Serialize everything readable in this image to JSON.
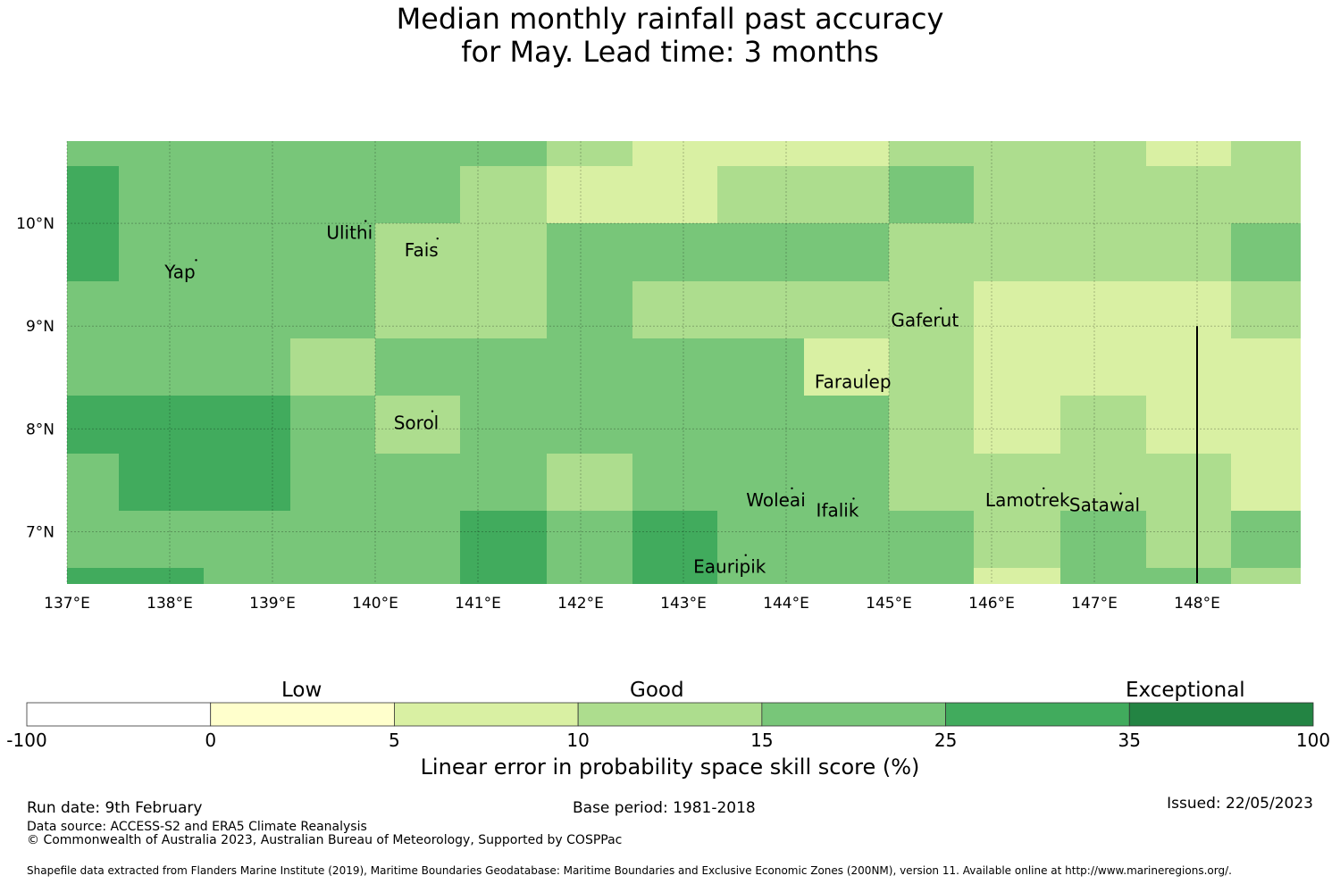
{
  "title": {
    "line1": "Median monthly rainfall past accuracy",
    "line2": "for May. Lead time: 3 months"
  },
  "map": {
    "lon_range": [
      137.0,
      149.0
    ],
    "lat_range": [
      6.5,
      10.8
    ],
    "lon_ticks": [
      {
        "value": 137,
        "label": "137°E"
      },
      {
        "value": 138,
        "label": "138°E"
      },
      {
        "value": 139,
        "label": "139°E"
      },
      {
        "value": 140,
        "label": "140°E"
      },
      {
        "value": 141,
        "label": "141°E"
      },
      {
        "value": 142,
        "label": "142°E"
      },
      {
        "value": 143,
        "label": "143°E"
      },
      {
        "value": 144,
        "label": "144°E"
      },
      {
        "value": 145,
        "label": "145°E"
      },
      {
        "value": 146,
        "label": "146°E"
      },
      {
        "value": 147,
        "label": "147°E"
      },
      {
        "value": 148,
        "label": "148°E"
      }
    ],
    "lat_ticks": [
      {
        "value": 10,
        "label": "10°N"
      },
      {
        "value": 9,
        "label": "9°N"
      },
      {
        "value": 8,
        "label": "8°N"
      },
      {
        "value": 7,
        "label": "7°N"
      }
    ],
    "grid_lon_edges": [
      137.0,
      137.5,
      138.33,
      139.17,
      140.0,
      140.83,
      141.67,
      142.5,
      143.33,
      144.17,
      145.0,
      145.83,
      146.67,
      147.5,
      148.33,
      149.0
    ],
    "grid_lat_edges": [
      10.8,
      10.56,
      10.0,
      9.44,
      8.88,
      8.32,
      7.76,
      7.2,
      6.65,
      6.5
    ],
    "grid_classes": [
      [
        4,
        4,
        4,
        4,
        4,
        4,
        3,
        2,
        2,
        2,
        3,
        3,
        3,
        2,
        3
      ],
      [
        5,
        4,
        4,
        4,
        4,
        3,
        2,
        2,
        3,
        3,
        4,
        3,
        3,
        3,
        3
      ],
      [
        5,
        4,
        4,
        4,
        3,
        3,
        4,
        4,
        4,
        4,
        3,
        3,
        3,
        3,
        4
      ],
      [
        4,
        4,
        4,
        4,
        3,
        3,
        4,
        3,
        3,
        3,
        3,
        2,
        2,
        2,
        3
      ],
      [
        4,
        4,
        4,
        3,
        4,
        4,
        4,
        4,
        4,
        2,
        3,
        2,
        2,
        2,
        2
      ],
      [
        5,
        5,
        5,
        4,
        3,
        4,
        4,
        4,
        4,
        4,
        3,
        2,
        3,
        2,
        2
      ],
      [
        4,
        5,
        5,
        4,
        4,
        4,
        3,
        4,
        4,
        4,
        3,
        3,
        3,
        3,
        2
      ],
      [
        4,
        4,
        4,
        4,
        4,
        5,
        4,
        5,
        4,
        4,
        4,
        3,
        4,
        3,
        4
      ],
      [
        5,
        5,
        4,
        4,
        4,
        5,
        4,
        5,
        4,
        4,
        4,
        2,
        4,
        4,
        3
      ]
    ],
    "boundary_line": {
      "lon": 148.0,
      "lat_from": 6.5,
      "lat_to": 9.0
    },
    "places": [
      {
        "name": "Yap",
        "lon": 138.1,
        "lat": 9.52
      },
      {
        "name": "Ulithi",
        "lon": 139.75,
        "lat": 9.9
      },
      {
        "name": "Fais",
        "lon": 140.45,
        "lat": 9.73
      },
      {
        "name": "Gaferut",
        "lon": 145.35,
        "lat": 9.05
      },
      {
        "name": "Faraulep",
        "lon": 144.65,
        "lat": 8.45
      },
      {
        "name": "Sorol",
        "lon": 140.4,
        "lat": 8.05
      },
      {
        "name": "Woleai",
        "lon": 143.9,
        "lat": 7.3
      },
      {
        "name": "Ifalik",
        "lon": 144.5,
        "lat": 7.2
      },
      {
        "name": "Lamotrek",
        "lon": 146.35,
        "lat": 7.3
      },
      {
        "name": "Satawal",
        "lon": 147.1,
        "lat": 7.25
      },
      {
        "name": "Eauripik",
        "lon": 143.45,
        "lat": 6.65
      }
    ]
  },
  "colorbar": {
    "categories": [
      {
        "label": "Low"
      },
      {
        "label": "Good"
      },
      {
        "label": "Exceptional"
      }
    ],
    "colors": [
      "#ffffff",
      "#ffffcc",
      "#d9f0a3",
      "#addd8e",
      "#78c679",
      "#41ab5d",
      "#238443"
    ],
    "tick_labels": [
      "-100",
      "0",
      "5",
      "10",
      "15",
      "25",
      "35",
      "100"
    ],
    "title": "Linear error in probability space skill score (%)"
  },
  "footer": {
    "run_date": "Run date: 9th February",
    "base_period": "Base period: 1981-2018",
    "issued": "Issued: 22/05/2023",
    "data_source": "Data source: ACCESS-S2 and ERA5 Climate Reanalysis",
    "copyright": "© Commonwealth of Australia 2023, Australian Bureau of Meteorology, Supported by COSPPac",
    "shapefile": "Shapefile data extracted from Flanders Marine Institute (2019), Maritime Boundaries Geodatabase: Maritime Boundaries and Exclusive Economic Zones (200NM), version 11. Available online at http://www.marineregions.org/."
  }
}
